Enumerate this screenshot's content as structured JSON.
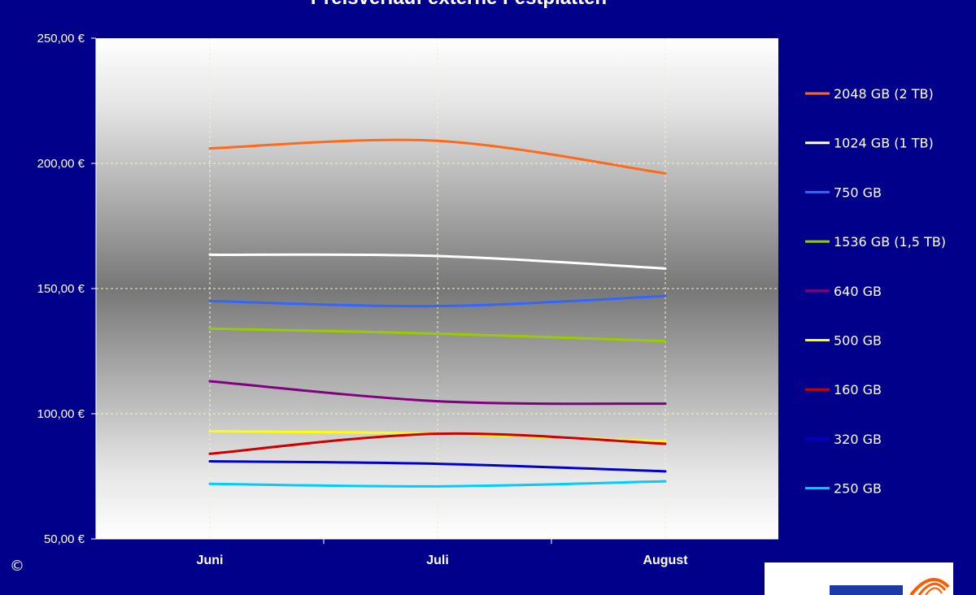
{
  "chart_data": {
    "type": "line",
    "title": "Preisverlauf externe Festplatten",
    "categories": [
      "Juni",
      "Juli",
      "August"
    ],
    "ylabel": "",
    "xlabel": "",
    "ylim": [
      50,
      250
    ],
    "yticks": [
      "50,00 €",
      "100,00 €",
      "150,00 €",
      "200,00 €",
      "250,00 €"
    ],
    "grid": true,
    "legend_position": "right",
    "series": [
      {
        "name": "2048 GB (2 TB)",
        "color": "#FF6A1A",
        "values": [
          206,
          209,
          196
        ]
      },
      {
        "name": "1024 GB (1 TB)",
        "color": "#FFFFFF",
        "values": [
          163.5,
          163,
          158
        ]
      },
      {
        "name": "750 GB",
        "color": "#3366FF",
        "values": [
          145,
          143,
          147
        ]
      },
      {
        "name": "1536 GB (1,5 TB)",
        "color": "#99CC00",
        "values": [
          134,
          132,
          129
        ]
      },
      {
        "name": "640 GB",
        "color": "#800080",
        "values": [
          113,
          105,
          104
        ]
      },
      {
        "name": "500 GB",
        "color": "#FFFF00",
        "values": [
          93,
          92,
          89
        ]
      },
      {
        "name": "160 GB",
        "color": "#CC0000",
        "values": [
          84,
          92,
          88
        ]
      },
      {
        "name": "320 GB",
        "color": "#0000CC",
        "values": [
          81,
          80,
          77
        ]
      },
      {
        "name": "250 GB",
        "color": "#00CCFF",
        "values": [
          72,
          71,
          73
        ]
      }
    ]
  },
  "copyright_symbol": "©"
}
